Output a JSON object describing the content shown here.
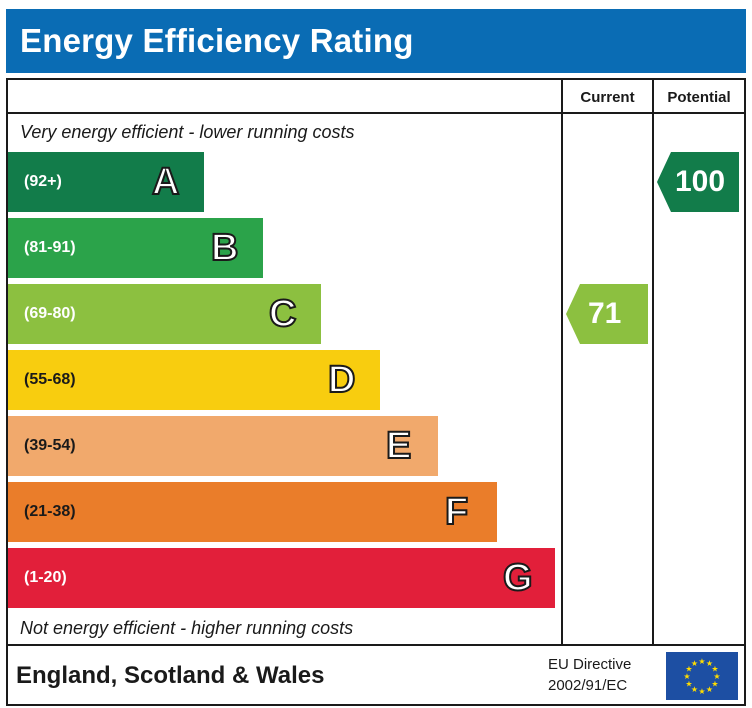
{
  "title": "Energy Efficiency Rating",
  "columns": {
    "current": "Current",
    "potential": "Potential"
  },
  "top_note": "Very energy efficient - lower running costs",
  "bottom_note": "Not energy efficient - higher running costs",
  "footer": {
    "region": "England, Scotland & Wales",
    "directive_line1": "EU Directive",
    "directive_line2": "2002/91/EC",
    "flag_icon": "eu-flag-icon"
  },
  "chart_data": {
    "type": "bar",
    "categories": [
      "A",
      "B",
      "C",
      "D",
      "E",
      "F",
      "G"
    ],
    "ranges": [
      "(92+)",
      "(81-91)",
      "(69-80)",
      "(55-68)",
      "(39-54)",
      "(21-38)",
      "(1-20)"
    ],
    "band_colors": [
      "#127c4a",
      "#2ba34a",
      "#8cc040",
      "#f8cd0f",
      "#f1a96c",
      "#ea7d2a",
      "#e21f3a"
    ],
    "current": {
      "value": 71,
      "band": "C",
      "color": "#8cc040"
    },
    "potential": {
      "value": 100,
      "band": "A",
      "color": "#127c4a"
    }
  }
}
